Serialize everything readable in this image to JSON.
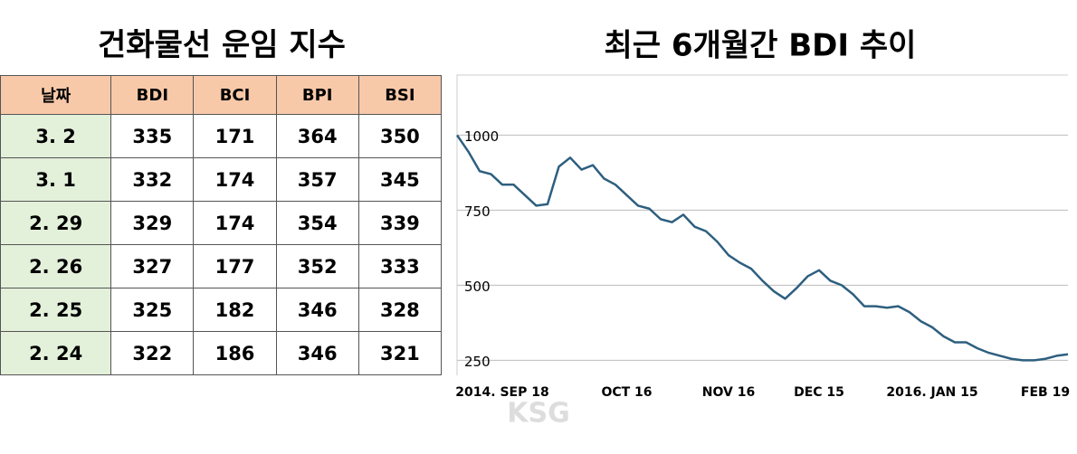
{
  "table": {
    "title": "건화물선 운임 지수",
    "header": [
      "날짜",
      "BDI",
      "BCI",
      "BPI",
      "BSI"
    ],
    "rows": [
      [
        "3. 2",
        335,
        171,
        364,
        350
      ],
      [
        "3. 1",
        332,
        174,
        357,
        345
      ],
      [
        "2. 29",
        329,
        174,
        354,
        339
      ],
      [
        "2. 26",
        327,
        177,
        352,
        333
      ],
      [
        "2. 25",
        325,
        182,
        346,
        328
      ],
      [
        "2. 24",
        322,
        186,
        346,
        321
      ]
    ]
  },
  "chart_data": {
    "type": "line",
    "title": "최근 6개월간 BDI 추이",
    "categories": [
      null,
      null,
      null,
      null,
      "2014. SEP 18",
      null,
      null,
      null,
      null,
      null,
      null,
      null,
      null,
      null,
      null,
      "OCT 16",
      null,
      null,
      null,
      null,
      null,
      null,
      null,
      null,
      "NOV 16",
      null,
      null,
      null,
      null,
      null,
      null,
      null,
      "DEC 15",
      null,
      null,
      null,
      null,
      null,
      null,
      null,
      null,
      null,
      "2016. JAN 15",
      null,
      null,
      null,
      null,
      null,
      null,
      null,
      null,
      null,
      "FEB 19",
      null,
      null
    ],
    "series": [
      {
        "name": "BDI",
        "color": "#2e5f7f",
        "values": [
          1000,
          945,
          880,
          870,
          835,
          835,
          800,
          765,
          770,
          895,
          925,
          885,
          900,
          855,
          835,
          800,
          765,
          755,
          720,
          710,
          735,
          695,
          680,
          645,
          600,
          575,
          555,
          515,
          480,
          455,
          490,
          530,
          550,
          515,
          500,
          470,
          430,
          430,
          425,
          430,
          410,
          380,
          360,
          330,
          310,
          310,
          290,
          275,
          265,
          255,
          250,
          250,
          255,
          265,
          270
        ]
      }
    ],
    "ylim": [
      200,
      1200
    ],
    "yticks": [
      250,
      500,
      750,
      1000
    ],
    "grid": true
  },
  "watermark": "KSG"
}
